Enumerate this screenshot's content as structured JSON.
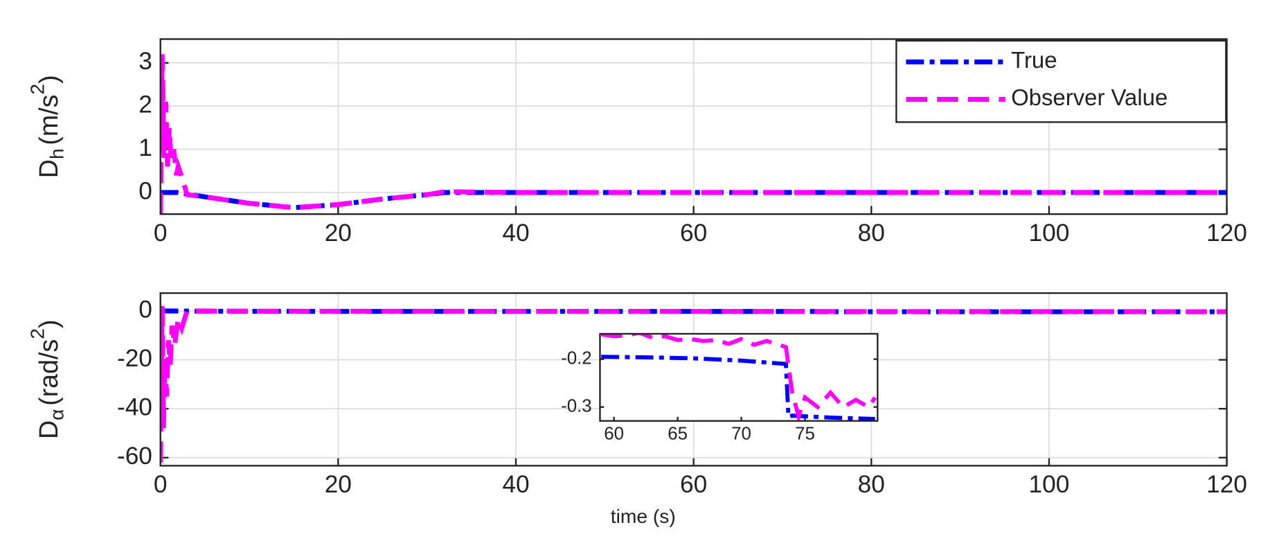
{
  "chart_data": [
    {
      "type": "line",
      "ylabel": [
        "D",
        "h",
        "(m/s",
        "2",
        ")"
      ],
      "xlim": [
        0,
        120
      ],
      "xticks": [
        0,
        20,
        40,
        60,
        80,
        100,
        120
      ],
      "ylim": [
        -0.5,
        3.55
      ],
      "yticks": [
        0,
        1,
        2,
        3
      ],
      "grid": true,
      "legend": "northeast",
      "series": [
        {
          "name": "True",
          "color": "#0000ff",
          "x": [
            0,
            2,
            5,
            10,
            15,
            20,
            25,
            30,
            32,
            40,
            60,
            80,
            100,
            120
          ],
          "values": [
            0,
            0,
            -0.1,
            -0.25,
            -0.35,
            -0.28,
            -0.15,
            -0.05,
            0,
            0,
            0,
            0,
            0,
            0
          ]
        },
        {
          "name": "Observer Value",
          "color": "#ff00ff",
          "x": [
            0,
            0.2,
            0.4,
            0.6,
            0.8,
            1,
            1.2,
            1.5,
            1.8,
            2,
            2.5,
            3,
            5,
            10,
            15,
            20,
            25,
            30,
            32,
            40,
            60,
            80,
            100,
            120
          ],
          "values": [
            -0.5,
            3.2,
            0.8,
            2.1,
            0.6,
            1.5,
            0.7,
            1.0,
            0.4,
            0.6,
            0.3,
            -0.05,
            -0.1,
            -0.25,
            -0.35,
            -0.28,
            -0.15,
            -0.05,
            0.02,
            0,
            0,
            0,
            0,
            0
          ]
        }
      ]
    },
    {
      "type": "line",
      "ylabel": [
        "D",
        "α",
        "(rad/s",
        "2",
        ")"
      ],
      "xlabel": "time (s)",
      "xlim": [
        0,
        120
      ],
      "xticks": [
        0,
        20,
        40,
        60,
        80,
        100,
        120
      ],
      "ylim": [
        -63.3,
        7.3
      ],
      "yticks": [
        -60,
        -40,
        -20,
        0
      ],
      "grid": true,
      "series": [
        {
          "name": "True",
          "color": "#0000ff",
          "x": [
            0,
            5,
            10,
            20,
            40,
            60,
            73.5,
            74,
            120
          ],
          "values": [
            0,
            -0.1,
            -0.15,
            -0.18,
            -0.19,
            -0.2,
            -0.21,
            -0.32,
            -0.33
          ]
        },
        {
          "name": "Observer Value",
          "color": "#ff00ff",
          "x": [
            0,
            0.2,
            0.35,
            0.5,
            0.7,
            0.9,
            1.1,
            1.3,
            1.6,
            2,
            2.4,
            3,
            4,
            10,
            40,
            120
          ],
          "values": [
            -62,
            2,
            -48,
            -20,
            -35,
            -12,
            -22,
            -6,
            -14,
            -3,
            -7,
            0,
            0,
            -0.1,
            -0.15,
            -0.3
          ]
        }
      ]
    },
    {
      "type": "line",
      "xlim": [
        58.9,
        80.7
      ],
      "xticks": [
        60,
        65,
        70,
        75
      ],
      "ylim": [
        -0.329,
        -0.147
      ],
      "yticks": [
        -0.3,
        -0.2
      ],
      "grid": false,
      "series": [
        {
          "name": "True",
          "color": "#0000ff",
          "x": [
            59,
            62,
            66,
            70,
            73.5,
            73.7,
            74,
            77,
            80.5
          ],
          "values": [
            -0.195,
            -0.196,
            -0.198,
            -0.203,
            -0.21,
            -0.32,
            -0.318,
            -0.322,
            -0.325
          ]
        },
        {
          "name": "Observer Value",
          "color": "#ff00ff",
          "x": [
            59,
            60,
            61,
            62,
            63,
            64,
            65,
            66,
            67,
            68,
            69,
            70,
            71,
            72,
            73,
            73.5,
            74,
            74.5,
            75,
            76,
            77,
            78,
            79,
            80,
            80.5
          ],
          "values": [
            -0.148,
            -0.152,
            -0.15,
            -0.145,
            -0.155,
            -0.152,
            -0.16,
            -0.158,
            -0.162,
            -0.16,
            -0.168,
            -0.158,
            -0.17,
            -0.162,
            -0.17,
            -0.175,
            -0.27,
            -0.32,
            -0.28,
            -0.3,
            -0.27,
            -0.3,
            -0.285,
            -0.3,
            -0.28
          ]
        }
      ]
    }
  ]
}
